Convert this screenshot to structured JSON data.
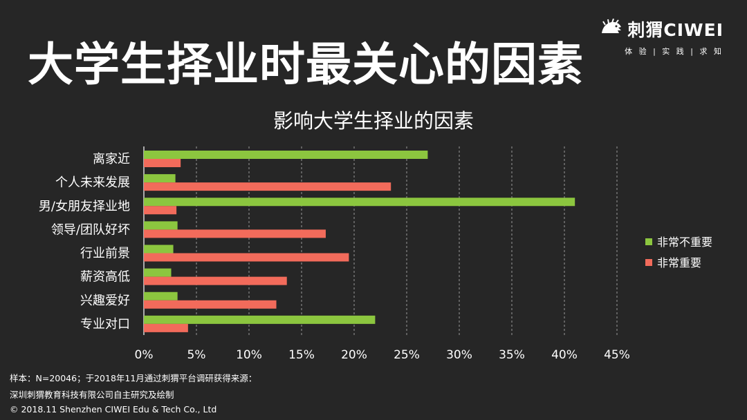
{
  "header": {
    "title": "大学生择业时最关心的因素"
  },
  "brand": {
    "name": "刺猬CIWEI",
    "tagline": "体 验 | 实 践 | 求 知",
    "icon": "hedgehog-icon"
  },
  "footnotes": {
    "line1": "样本：N=20046；于2018年11月通过刺猬平台调研获得来源：",
    "line2": "深圳刺猬教育科技有限公司自主研究及绘制",
    "line3": "© 2018.11  Shenzhen CIWEI Edu & Tech Co., Ltd"
  },
  "chart_data": {
    "type": "bar",
    "orientation": "horizontal",
    "title": "影响大学生择业的因素",
    "categories": [
      "离家近",
      "个人未来发展",
      "男/女朋友择业地",
      "领导/团队好坏",
      "行业前景",
      "薪资高低",
      "兴趣爱好",
      "专业对口"
    ],
    "series": [
      {
        "name": "非常不重要",
        "color": "#8cc63f",
        "values": [
          27.0,
          3.0,
          41.0,
          3.2,
          2.8,
          2.6,
          3.2,
          22.0
        ]
      },
      {
        "name": "非常重要",
        "color": "#f26b5b",
        "values": [
          3.5,
          23.5,
          3.1,
          17.3,
          19.5,
          13.6,
          12.6,
          4.2
        ]
      }
    ],
    "xlim": [
      0,
      45
    ],
    "xticks": [
      "0%",
      "5%",
      "10%",
      "15%",
      "20%",
      "25%",
      "30%",
      "35%",
      "40%",
      "45%"
    ],
    "grid": "dashed vertical",
    "legend_position": "right"
  }
}
